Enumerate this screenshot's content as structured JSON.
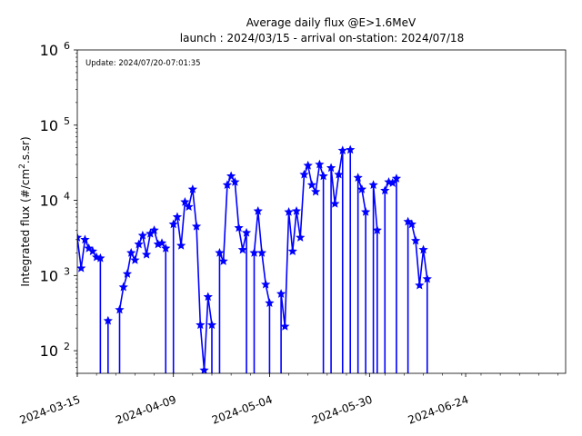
{
  "chart_data": {
    "type": "line",
    "title": "Average daily flux @E>1.6MeV",
    "subtitle": "launch : 2024/03/15 - arrival on-station: 2024/07/18",
    "annotation": "Update: 2024/07/20-07:01:35",
    "ylabel": "Integrated flux (#/cm².s.sr)",
    "xlabel": "",
    "y_scale": "log",
    "ylim": [
      50,
      1000000
    ],
    "xlim": [
      "2024-03-15",
      "2024-07-20"
    ],
    "x_ticks": [
      "2024-03-15",
      "2024-04-09",
      "2024-05-04",
      "2024-05-30",
      "2024-06-24"
    ],
    "y_ticks": [
      {
        "value": 100,
        "base": "10",
        "exp": "2"
      },
      {
        "value": 1000,
        "base": "10",
        "exp": "3"
      },
      {
        "value": 10000,
        "base": "10",
        "exp": "4"
      },
      {
        "value": 100000,
        "base": "10",
        "exp": "5"
      },
      {
        "value": 1000000,
        "base": "10",
        "exp": "6"
      }
    ],
    "grid": false,
    "colors": {
      "series": "#0000ff"
    },
    "series": [
      {
        "points": [
          [
            "2024-03-15",
            3200
          ],
          [
            "2024-03-16",
            1250
          ],
          [
            "2024-03-17",
            3000
          ],
          [
            "2024-03-18",
            2300
          ],
          [
            "2024-03-19",
            2100
          ],
          [
            "2024-03-20",
            1750
          ],
          [
            "2024-03-21",
            1700
          ],
          [
            "2024-03-22",
            null
          ],
          [
            "2024-03-23",
            250
          ],
          [
            "2024-03-24",
            null
          ],
          [
            "2024-03-26",
            350
          ],
          [
            "2024-03-27",
            700
          ],
          [
            "2024-03-28",
            1050
          ],
          [
            "2024-03-29",
            2000
          ],
          [
            "2024-03-30",
            1600
          ],
          [
            "2024-03-31",
            2600
          ],
          [
            "2024-04-01",
            3400
          ],
          [
            "2024-04-02",
            1900
          ],
          [
            "2024-04-03",
            3600
          ],
          [
            "2024-04-04",
            4000
          ],
          [
            "2024-04-05",
            2600
          ],
          [
            "2024-04-06",
            2700
          ],
          [
            "2024-04-07",
            2300
          ],
          [
            "2024-04-08",
            null
          ],
          [
            "2024-04-09",
            4800
          ],
          [
            "2024-04-10",
            6000
          ],
          [
            "2024-04-11",
            2500
          ],
          [
            "2024-04-12",
            9500
          ],
          [
            "2024-04-13",
            8200
          ],
          [
            "2024-04-14",
            14000
          ],
          [
            "2024-04-15",
            4500
          ],
          [
            "2024-04-16",
            220
          ],
          [
            "2024-04-17",
            55
          ],
          [
            "2024-04-18",
            520
          ],
          [
            "2024-04-19",
            220
          ],
          [
            "2024-04-20",
            null
          ],
          [
            "2024-04-21",
            2000
          ],
          [
            "2024-04-22",
            1550
          ],
          [
            "2024-04-23",
            16000
          ],
          [
            "2024-04-24",
            21000
          ],
          [
            "2024-04-25",
            17500
          ],
          [
            "2024-04-26",
            4300
          ],
          [
            "2024-04-27",
            2200
          ],
          [
            "2024-04-28",
            3700
          ],
          [
            "2024-04-29",
            null
          ],
          [
            "2024-04-30",
            2000
          ],
          [
            "2024-05-01",
            7200
          ],
          [
            "2024-05-02",
            2000
          ],
          [
            "2024-05-03",
            760
          ],
          [
            "2024-05-04",
            430
          ],
          [
            "2024-05-05",
            null
          ],
          [
            "2024-05-07",
            570
          ],
          [
            "2024-05-08",
            210
          ],
          [
            "2024-05-09",
            7000
          ],
          [
            "2024-05-10",
            2100
          ],
          [
            "2024-05-11",
            7200
          ],
          [
            "2024-05-12",
            3200
          ],
          [
            "2024-05-13",
            22000
          ],
          [
            "2024-05-14",
            29000
          ],
          [
            "2024-05-15",
            16000
          ],
          [
            "2024-05-16",
            13000
          ],
          [
            "2024-05-17",
            30000
          ],
          [
            "2024-05-18",
            21000
          ],
          [
            "2024-05-19",
            null
          ],
          [
            "2024-05-20",
            27000
          ],
          [
            "2024-05-21",
            9000
          ],
          [
            "2024-05-22",
            22000
          ],
          [
            "2024-05-23",
            46000
          ],
          [
            "2024-05-24",
            null
          ],
          [
            "2024-05-25",
            47000
          ],
          [
            "2024-05-26",
            null
          ],
          [
            "2024-05-27",
            20000
          ],
          [
            "2024-05-28",
            14000
          ],
          [
            "2024-05-29",
            7000
          ],
          [
            "2024-05-30",
            null
          ],
          [
            "2024-05-31",
            16000
          ],
          [
            "2024-06-01",
            4000
          ],
          [
            "2024-06-02",
            null
          ],
          [
            "2024-06-03",
            13500
          ],
          [
            "2024-06-04",
            17500
          ],
          [
            "2024-06-05",
            17000
          ],
          [
            "2024-06-06",
            19500
          ],
          [
            "2024-06-07",
            null
          ],
          [
            "2024-06-09",
            5200
          ],
          [
            "2024-06-10",
            4800
          ],
          [
            "2024-06-11",
            2900
          ],
          [
            "2024-06-12",
            740
          ],
          [
            "2024-06-13",
            2200
          ],
          [
            "2024-06-14",
            900
          ],
          [
            "2024-06-15",
            null
          ]
        ]
      }
    ]
  }
}
